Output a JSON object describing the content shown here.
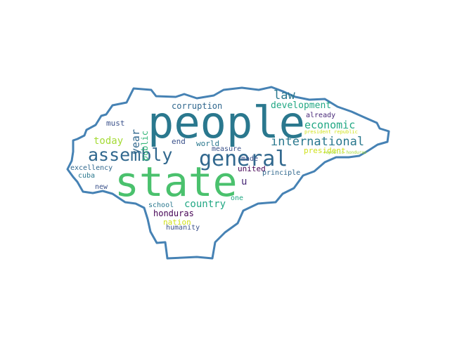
{
  "colors": {
    "outline": "#4682b4",
    "palette": [
      "#2a788e",
      "#35b779",
      "#4ac16d",
      "#22a884",
      "#31688e",
      "#3b528b",
      "#440154",
      "#482878",
      "#a5db36",
      "#d0e11c",
      "#fde725"
    ]
  },
  "words": {
    "people": "people",
    "state": "state",
    "general": "general",
    "assembly": "assembly",
    "international": "international",
    "law": "law",
    "development": "development",
    "economic": "economic",
    "corruption": "corruption",
    "year": "year",
    "public": "public",
    "today": "today",
    "must": "must",
    "end": "end",
    "world": "world",
    "measure": "measure",
    "president": "president",
    "already": "already",
    "united": "united",
    "u": "u",
    "made": "made",
    "principle": "principle",
    "excellency": "excellency",
    "cuba": "cuba",
    "new": "new",
    "country": "country",
    "one": "one",
    "school": "school",
    "honduras": "honduras",
    "nation": "nation",
    "humanity": "humanity",
    "president_republic": "president republic",
    "republic_honduras": "republic honduras"
  }
}
